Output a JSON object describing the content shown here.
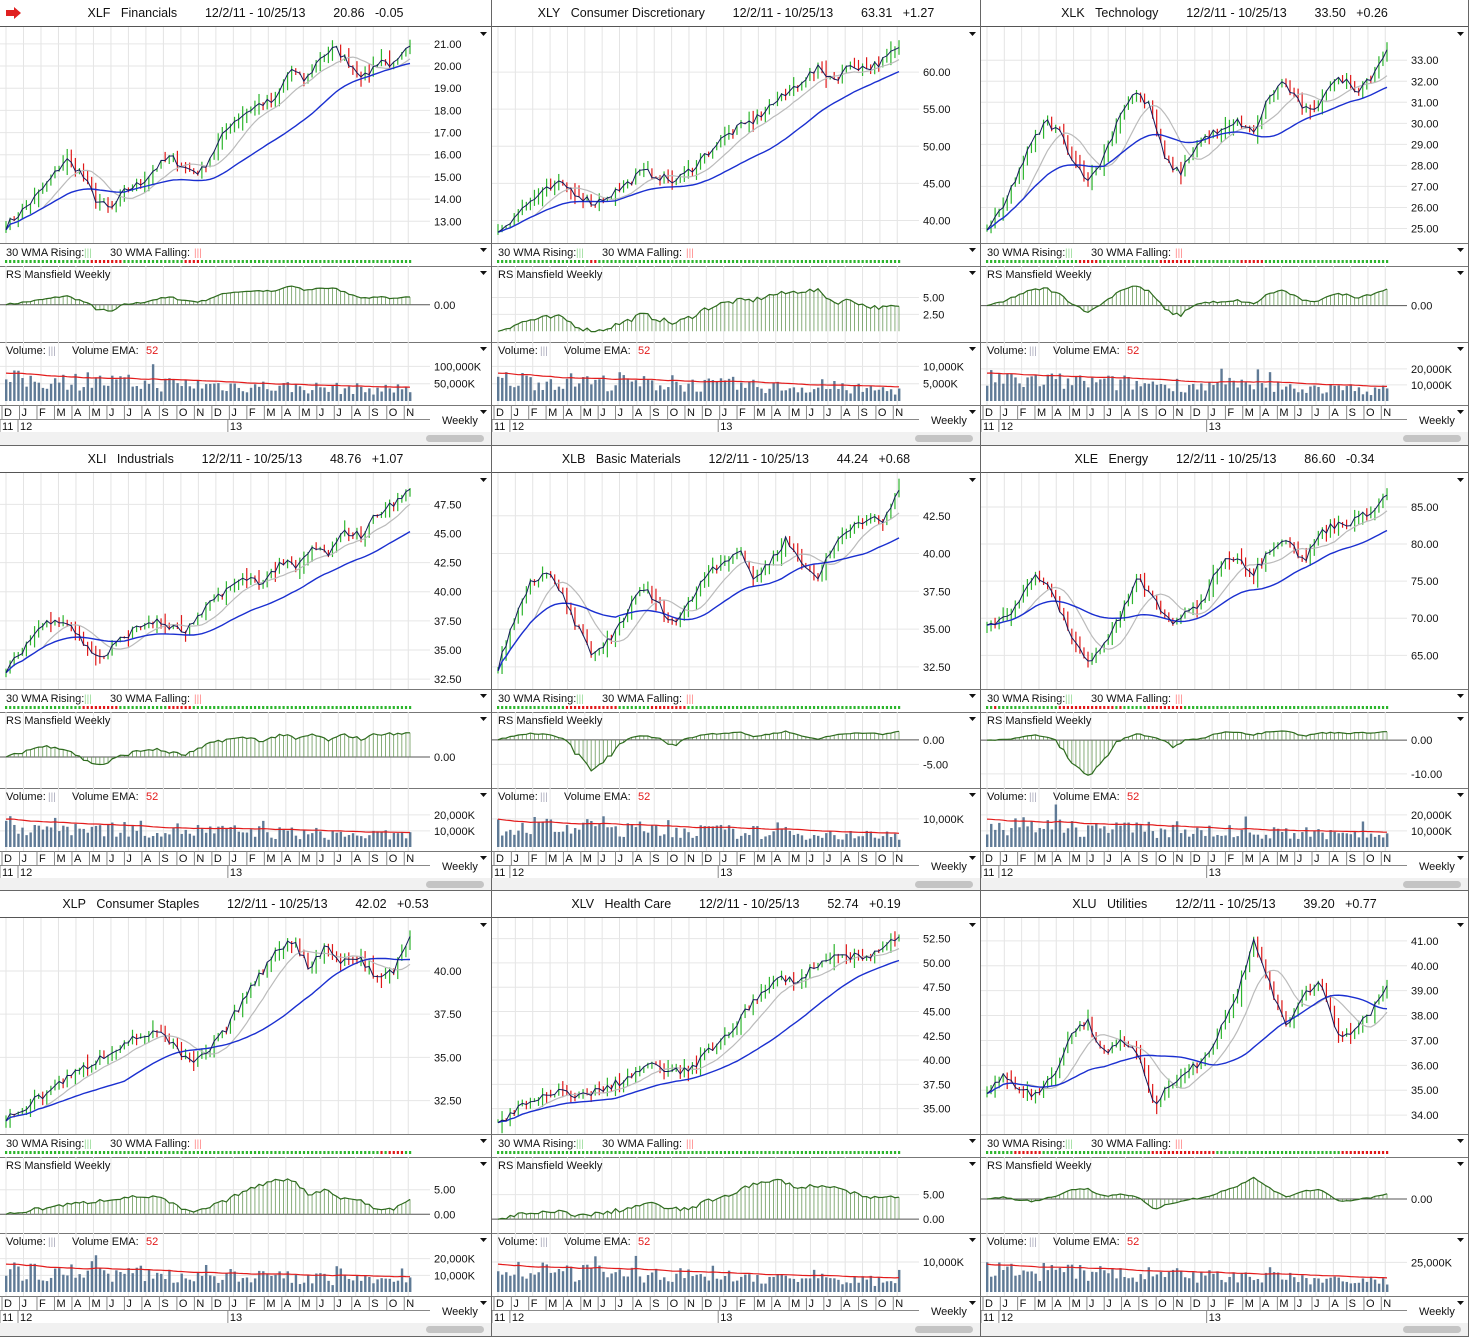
{
  "months": [
    "D",
    "J",
    "F",
    "M",
    "A",
    "M",
    "J",
    "J",
    "A",
    "S",
    "O",
    "N",
    "D",
    "J",
    "F",
    "M",
    "A",
    "M",
    "J",
    "J",
    "A",
    "S",
    "O",
    "N"
  ],
  "years": [
    "11",
    "12",
    "13"
  ],
  "labels": {
    "wma_rising": "30 WMA Rising:",
    "wma_falling": "30 WMA Falling:",
    "rs": "RS Mansfield Weekly",
    "volume": "Volume:",
    "volume_ema": "Volume EMA:",
    "volume_ema_period": "52",
    "period": "Weekly",
    "bars_glyph": "|||"
  },
  "colors": {
    "up": "#2db52d",
    "down": "#e01818",
    "wma30": "#1a2fd0",
    "wma10": "#bbbbbb",
    "close": "#141a5a",
    "rs": "#2e6b1e",
    "volume": "#5f7a96",
    "ema": "#e31b1b"
  },
  "chart_data": [
    {
      "type": "line",
      "symbol": "XLF",
      "name": "Financials",
      "range": "12/2/11 - 10/25/13",
      "price": "20.86",
      "change": "-0.05",
      "ylim": [
        12.2,
        21.4
      ],
      "yticks": [
        "13.00",
        "14.00",
        "15.00",
        "16.00",
        "17.00",
        "18.00",
        "19.00",
        "20.00",
        "21.00"
      ],
      "rsticks": [
        "0.00"
      ],
      "rslim": [
        -8,
        5
      ],
      "volticks": [
        "50,000K",
        "100,000K"
      ],
      "volmax": 130000,
      "closes": [
        12.8,
        13.4,
        14.1,
        14.9,
        15.8,
        15.2,
        14.0,
        13.5,
        14.4,
        14.7,
        15.4,
        15.9,
        15.4,
        15.2,
        16.3,
        17.4,
        17.9,
        18.3,
        18.4,
        19.9,
        19.3,
        20.4,
        20.8,
        20.1,
        19.5,
        20.3,
        20.0,
        20.9
      ]
    },
    {
      "type": "line",
      "symbol": "XLY",
      "name": "Consumer Discretionary",
      "range": "12/2/11 - 10/25/13",
      "price": "63.31",
      "change": "+1.27",
      "ylim": [
        37.5,
        65
      ],
      "yticks": [
        "40.00",
        "45.00",
        "50.00",
        "55.00",
        "60.00"
      ],
      "rsticks": [
        "2.50",
        "5.00"
      ],
      "rslim": [
        -1,
        7
      ],
      "volticks": [
        "5,000K",
        "10,000K"
      ],
      "volmax": 13000,
      "closes": [
        38.5,
        40.5,
        42.5,
        44.0,
        45.0,
        43.5,
        42.3,
        43.5,
        44.8,
        46.6,
        46.0,
        45.2,
        46.8,
        49.0,
        51.0,
        52.5,
        53.5,
        55.5,
        57.0,
        59.0,
        60.5,
        59.0,
        61.0,
        60.5,
        61.5,
        63.3
      ]
    },
    {
      "type": "line",
      "symbol": "XLK",
      "name": "Technology",
      "range": "12/2/11 - 10/25/13",
      "price": "33.50",
      "change": "+0.26",
      "ylim": [
        24.5,
        34.2
      ],
      "yticks": [
        "25.00",
        "26.00",
        "27.00",
        "28.00",
        "29.00",
        "30.00",
        "31.00",
        "32.00",
        "33.00"
      ],
      "rsticks": [
        "0.00"
      ],
      "rslim": [
        -6,
        4
      ],
      "volticks": [
        "10,000K",
        "20,000K"
      ],
      "volmax": 28000,
      "closes": [
        25.0,
        25.8,
        27.5,
        29.0,
        30.1,
        29.5,
        28.0,
        27.3,
        28.6,
        30.5,
        31.5,
        30.8,
        28.3,
        27.6,
        28.8,
        29.5,
        29.6,
        30.1,
        29.5,
        31.2,
        32.0,
        31.0,
        30.4,
        31.8,
        32.1,
        31.6,
        32.3,
        33.5
      ]
    },
    {
      "type": "line",
      "symbol": "XLI",
      "name": "Industrials",
      "range": "12/2/11 - 10/25/13",
      "price": "48.76",
      "change": "+1.07",
      "ylim": [
        32,
        49.5
      ],
      "yticks": [
        "32.50",
        "35.00",
        "37.50",
        "40.00",
        "42.50",
        "45.00",
        "47.50"
      ],
      "rsticks": [
        "0.00"
      ],
      "rslim": [
        -5,
        5
      ],
      "volticks": [
        "10,000K",
        "20,000K"
      ],
      "volmax": 28000,
      "closes": [
        33.0,
        35.0,
        36.8,
        37.8,
        37.2,
        35.2,
        34.3,
        35.8,
        36.8,
        37.5,
        37.1,
        36.5,
        37.8,
        39.6,
        40.5,
        41.2,
        40.8,
        42.6,
        42.0,
        43.8,
        43.2,
        45.2,
        44.8,
        46.8,
        47.5,
        48.8
      ]
    },
    {
      "type": "line",
      "symbol": "XLB",
      "name": "Basic Materials",
      "range": "12/2/11 - 10/25/13",
      "price": "44.24",
      "change": "+0.68",
      "ylim": [
        31.3,
        44.8
      ],
      "yticks": [
        "32.50",
        "35.00",
        "37.50",
        "40.00",
        "42.50"
      ],
      "rsticks": [
        "0.00",
        "-5.00"
      ],
      "rslim": [
        -9,
        2
      ],
      "volticks": [
        "10,000K"
      ],
      "volmax": 16000,
      "closes": [
        32.5,
        35.5,
        38.0,
        38.8,
        37.2,
        35.0,
        33.2,
        34.4,
        36.0,
        37.8,
        36.6,
        35.4,
        36.8,
        38.8,
        39.4,
        40.2,
        38.3,
        39.5,
        41.0,
        39.2,
        38.5,
        40.6,
        41.8,
        42.4,
        42.0,
        44.2
      ]
    },
    {
      "type": "line",
      "symbol": "XLE",
      "name": "Energy",
      "range": "12/2/11 - 10/25/13",
      "price": "86.60",
      "change": "-0.34",
      "ylim": [
        61,
        88.5
      ],
      "yticks": [
        "65.00",
        "70.00",
        "75.00",
        "80.00",
        "85.00"
      ],
      "rsticks": [
        "0.00",
        "-10.00"
      ],
      "rslim": [
        -13,
        3
      ],
      "volticks": [
        "10,000K",
        "20,000K"
      ],
      "volmax": 28000,
      "closes": [
        69.5,
        69.8,
        72.5,
        76.0,
        73.0,
        68.0,
        64.0,
        66.5,
        70.0,
        75.5,
        72.5,
        69.5,
        70.5,
        72.5,
        77.5,
        78.5,
        76.0,
        79.5,
        81.0,
        77.5,
        81.5,
        82.8,
        83.0,
        84.5,
        86.6
      ]
    },
    {
      "type": "line",
      "symbol": "XLP",
      "name": "Consumer Staples",
      "range": "12/2/11 - 10/25/13",
      "price": "42.02",
      "change": "+0.53",
      "ylim": [
        30.8,
        42.6
      ],
      "yticks": [
        "32.50",
        "35.00",
        "37.50",
        "40.00"
      ],
      "rsticks": [
        "0.00",
        "5.00"
      ],
      "rslim": [
        -3,
        8
      ],
      "volticks": [
        "10,000K",
        "20,000K"
      ],
      "volmax": 27000,
      "closes": [
        31.4,
        32.0,
        32.7,
        33.4,
        34.0,
        34.6,
        35.2,
        35.8,
        36.2,
        36.5,
        35.6,
        34.6,
        35.3,
        36.5,
        38.2,
        39.6,
        41.2,
        41.8,
        40.2,
        41.5,
        40.5,
        40.8,
        39.6,
        40.0,
        42.0
      ]
    },
    {
      "type": "line",
      "symbol": "XLV",
      "name": "Health Care",
      "range": "12/2/11 - 10/25/13",
      "price": "52.74",
      "change": "+0.19",
      "ylim": [
        32.8,
        53.8
      ],
      "yticks": [
        "35.00",
        "37.50",
        "40.00",
        "42.50",
        "45.00",
        "47.50",
        "50.00",
        "52.50"
      ],
      "rsticks": [
        "0.00",
        "5.00"
      ],
      "rslim": [
        -2,
        9
      ],
      "volticks": [
        "10,000K"
      ],
      "volmax": 15000,
      "closes": [
        33.5,
        34.8,
        35.6,
        36.3,
        36.8,
        36.3,
        36.8,
        37.5,
        38.4,
        39.5,
        39.0,
        38.7,
        39.8,
        41.5,
        43.2,
        45.5,
        47.0,
        48.6,
        48.0,
        49.8,
        50.5,
        50.8,
        50.2,
        51.5,
        52.7
      ]
    },
    {
      "type": "line",
      "symbol": "XLU",
      "name": "Utilities",
      "range": "12/2/11 - 10/25/13",
      "price": "39.20",
      "change": "+0.77",
      "ylim": [
        33.4,
        41.6
      ],
      "yticks": [
        "34.00",
        "35.00",
        "36.00",
        "37.00",
        "38.00",
        "39.00",
        "40.00",
        "41.00"
      ],
      "rsticks": [
        "0.00"
      ],
      "rslim": [
        -5,
        4
      ],
      "volticks": [
        "25,000K"
      ],
      "volmax": 38000,
      "closes": [
        35.0,
        35.6,
        35.1,
        34.8,
        35.6,
        37.2,
        37.8,
        36.5,
        37.0,
        36.6,
        34.3,
        35.2,
        35.8,
        36.2,
        37.5,
        38.8,
        41.0,
        39.2,
        37.6,
        38.8,
        39.4,
        37.2,
        37.4,
        38.0,
        39.2
      ]
    }
  ]
}
